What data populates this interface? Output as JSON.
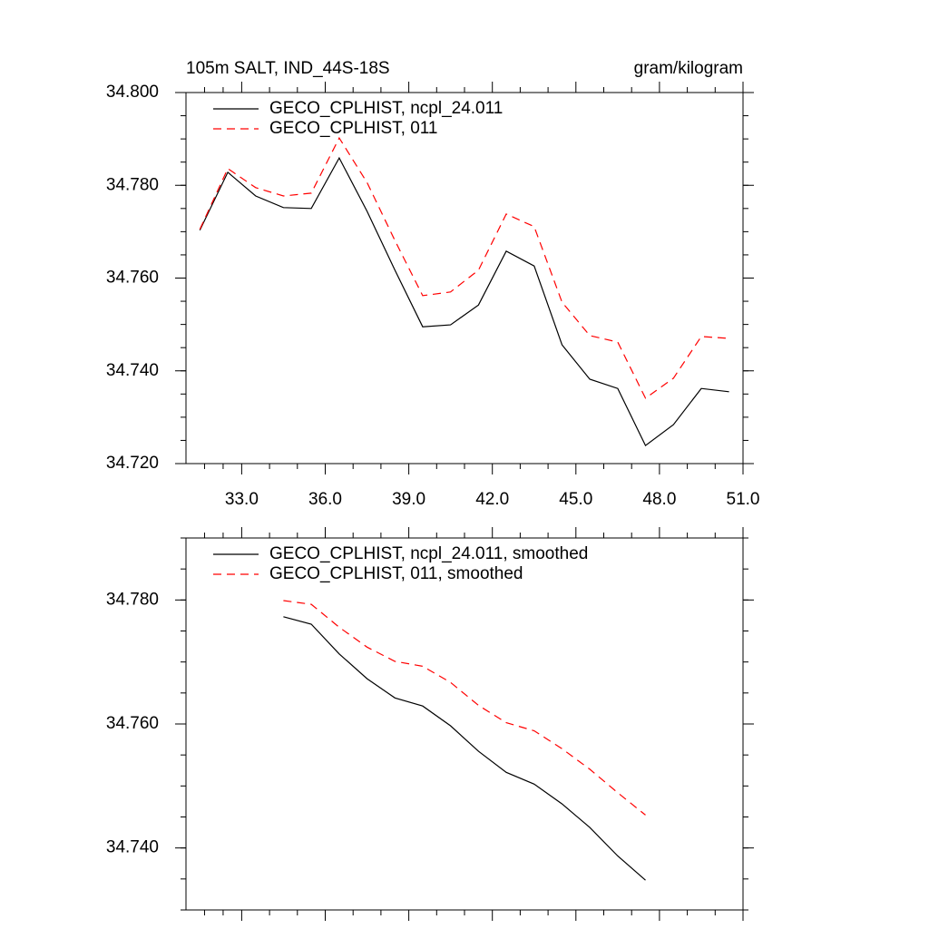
{
  "chart_data": [
    {
      "type": "line",
      "title": "105m SALT, IND_44S-18S",
      "subtitle": "gram/kilogram",
      "x": [
        31.5,
        32.5,
        33.5,
        34.5,
        35.5,
        36.5,
        37.5,
        38.5,
        39.5,
        40.5,
        41.5,
        42.5,
        43.5,
        44.5,
        45.5,
        46.5,
        47.5,
        48.5,
        49.5,
        50.5
      ],
      "series": [
        {
          "name": "GECO_CPLHIST, ncpl_24.011",
          "color": "#000000",
          "line_style": "solid",
          "values": [
            34.7703,
            34.7828,
            34.7777,
            34.7752,
            34.775,
            34.7859,
            34.7744,
            34.7617,
            34.7495,
            34.7499,
            34.7542,
            34.7658,
            34.7626,
            34.7456,
            34.7382,
            34.7362,
            34.7239,
            34.7284,
            34.7362,
            34.7355
          ]
        },
        {
          "name": "GECO_CPLHIST, 011",
          "color": "#ff0000",
          "line_style": "dashed",
          "values": [
            34.7705,
            34.7836,
            34.7795,
            34.7777,
            34.7783,
            34.7902,
            34.7806,
            34.7681,
            34.7562,
            34.757,
            34.7617,
            34.7738,
            34.7711,
            34.7548,
            34.7476,
            34.7462,
            34.7341,
            34.7384,
            34.7474,
            34.747
          ]
        }
      ],
      "xlim": [
        31,
        51
      ],
      "xticks": [
        {
          "value": 33,
          "label": "33.0"
        },
        {
          "value": 36,
          "label": "36.0"
        },
        {
          "value": 39,
          "label": "39.0"
        },
        {
          "value": 42,
          "label": "42.0"
        },
        {
          "value": 45,
          "label": "45.0"
        },
        {
          "value": 48,
          "label": "48.0"
        },
        {
          "value": 51,
          "label": "51.0"
        }
      ],
      "ylim": [
        34.72,
        34.8
      ],
      "yticks": [
        {
          "value": 34.72,
          "label": "34.720"
        },
        {
          "value": 34.74,
          "label": "34.740"
        },
        {
          "value": 34.76,
          "label": "34.760"
        },
        {
          "value": 34.78,
          "label": "34.780"
        },
        {
          "value": 34.8,
          "label": "34.800"
        }
      ],
      "legend": "top-left"
    },
    {
      "type": "line",
      "x": [
        34.5,
        35.5,
        36.5,
        37.5,
        38.5,
        39.5,
        40.5,
        41.5,
        42.5,
        43.5,
        44.5,
        45.5,
        46.5,
        47.5
      ],
      "series": [
        {
          "name": "GECO_CPLHIST, ncpl_24.011, smoothed",
          "color": "#000000",
          "line_style": "solid",
          "values": [
            34.7773,
            34.7761,
            34.7713,
            34.7673,
            34.7642,
            34.7629,
            34.7597,
            34.7556,
            34.7522,
            34.7503,
            34.7471,
            34.7433,
            34.7387,
            34.7348
          ]
        },
        {
          "name": "GECO_CPLHIST, 011, smoothed",
          "color": "#ff0000",
          "line_style": "dashed",
          "values": [
            34.7799,
            34.7793,
            34.7756,
            34.7724,
            34.7701,
            34.7693,
            34.7667,
            34.763,
            34.7602,
            34.7589,
            34.756,
            34.7527,
            34.7489,
            34.7453
          ]
        }
      ],
      "xlim": [
        31,
        51
      ],
      "xticks": [
        33,
        36,
        39,
        42,
        45,
        48,
        51
      ],
      "ylim": [
        34.73,
        34.79
      ],
      "yticks": [
        {
          "value": 34.74,
          "label": "34.740"
        },
        {
          "value": 34.76,
          "label": "34.760"
        },
        {
          "value": 34.78,
          "label": "34.780"
        }
      ],
      "legend": "top-left"
    }
  ]
}
